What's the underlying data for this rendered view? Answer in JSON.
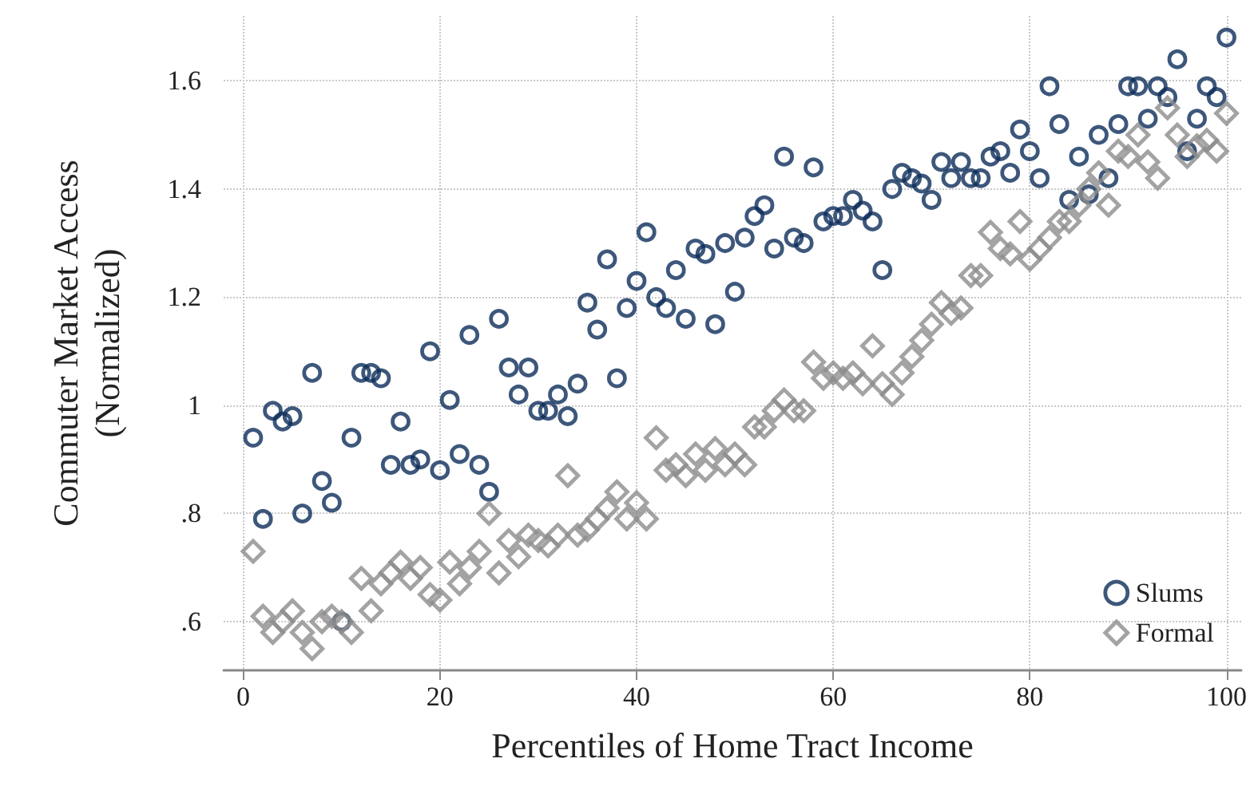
{
  "chart_data": {
    "type": "scatter",
    "xlabel": "Percentiles of Home Tract Income",
    "ylabel": "Commuter Market Access\n(Normalized)",
    "x": [
      1,
      2,
      3,
      4,
      5,
      6,
      7,
      8,
      9,
      10,
      11,
      12,
      13,
      14,
      15,
      16,
      17,
      18,
      19,
      20,
      21,
      22,
      23,
      24,
      25,
      26,
      27,
      28,
      29,
      30,
      31,
      32,
      33,
      34,
      35,
      36,
      37,
      38,
      39,
      40,
      41,
      42,
      43,
      44,
      45,
      46,
      47,
      48,
      49,
      50,
      51,
      52,
      53,
      54,
      55,
      56,
      57,
      58,
      59,
      60,
      61,
      62,
      63,
      64,
      65,
      66,
      67,
      68,
      69,
      70,
      71,
      72,
      73,
      74,
      75,
      76,
      77,
      78,
      79,
      80,
      81,
      82,
      83,
      84,
      85,
      86,
      87,
      88,
      89,
      90,
      91,
      92,
      93,
      94,
      95,
      96,
      97,
      98,
      99,
      100
    ],
    "series": [
      {
        "name": "Slums",
        "color": "#0d2d5a",
        "marker": "circle",
        "values": [
          0.94,
          0.79,
          0.99,
          0.97,
          0.98,
          0.8,
          1.06,
          0.86,
          0.82,
          0.6,
          0.94,
          1.06,
          1.06,
          1.05,
          0.89,
          0.97,
          0.89,
          0.9,
          1.1,
          0.88,
          1.01,
          0.91,
          1.13,
          0.89,
          0.84,
          1.16,
          1.07,
          1.02,
          1.07,
          0.99,
          0.99,
          1.02,
          0.98,
          1.04,
          1.19,
          1.14,
          1.27,
          1.05,
          1.18,
          1.23,
          1.32,
          1.2,
          1.18,
          1.25,
          1.16,
          1.29,
          1.28,
          1.15,
          1.3,
          1.21,
          1.31,
          1.35,
          1.37,
          1.29,
          1.46,
          1.31,
          1.3,
          1.44,
          1.34,
          1.35,
          1.35,
          1.38,
          1.36,
          1.34,
          1.25,
          1.4,
          1.43,
          1.42,
          1.41,
          1.38,
          1.45,
          1.42,
          1.45,
          1.42,
          1.42,
          1.46,
          1.47,
          1.43,
          1.51,
          1.47,
          1.42,
          1.59,
          1.52,
          1.38,
          1.46,
          1.39,
          1.5,
          1.42,
          1.52,
          1.59,
          1.59,
          1.53,
          1.59,
          1.57,
          1.64,
          1.47,
          1.53,
          1.59,
          1.57,
          1.68
        ]
      },
      {
        "name": "Formal",
        "color": "#8c8c8c",
        "marker": "diamond",
        "values": [
          0.73,
          0.61,
          0.58,
          0.6,
          0.62,
          0.58,
          0.55,
          0.6,
          0.61,
          0.6,
          0.58,
          0.68,
          0.62,
          0.67,
          0.69,
          0.71,
          0.68,
          0.7,
          0.65,
          0.64,
          0.71,
          0.67,
          0.7,
          0.73,
          0.8,
          0.69,
          0.75,
          0.72,
          0.76,
          0.75,
          0.74,
          0.76,
          0.87,
          0.76,
          0.77,
          0.79,
          0.81,
          0.84,
          0.79,
          0.82,
          0.79,
          0.94,
          0.88,
          0.89,
          0.87,
          0.91,
          0.88,
          0.92,
          0.89,
          0.91,
          0.89,
          0.96,
          0.96,
          0.99,
          1.01,
          0.99,
          0.99,
          1.08,
          1.05,
          1.06,
          1.05,
          1.06,
          1.04,
          1.11,
          1.04,
          1.02,
          1.06,
          1.09,
          1.12,
          1.15,
          1.19,
          1.17,
          1.18,
          1.24,
          1.24,
          1.32,
          1.29,
          1.28,
          1.34,
          1.27,
          1.29,
          1.31,
          1.34,
          1.34,
          1.37,
          1.4,
          1.43,
          1.37,
          1.47,
          1.46,
          1.5,
          1.45,
          1.42,
          1.55,
          1.5,
          1.46,
          1.48,
          1.49,
          1.47,
          1.54
        ]
      }
    ],
    "xlim": [
      -2,
      101.5
    ],
    "xticks": [
      0,
      20,
      40,
      60,
      80,
      100
    ],
    "ylim": [
      0.51,
      1.72
    ],
    "yticks": [
      {
        "value": 0.6,
        "label": ".6"
      },
      {
        "value": 0.8,
        "label": ".8"
      },
      1,
      {
        "value": 1.2,
        "label": "1.2"
      },
      {
        "value": 1.4,
        "label": "1.4"
      },
      {
        "value": 1.6,
        "label": "1.6"
      }
    ],
    "grid": true,
    "legend": "bottom right"
  }
}
